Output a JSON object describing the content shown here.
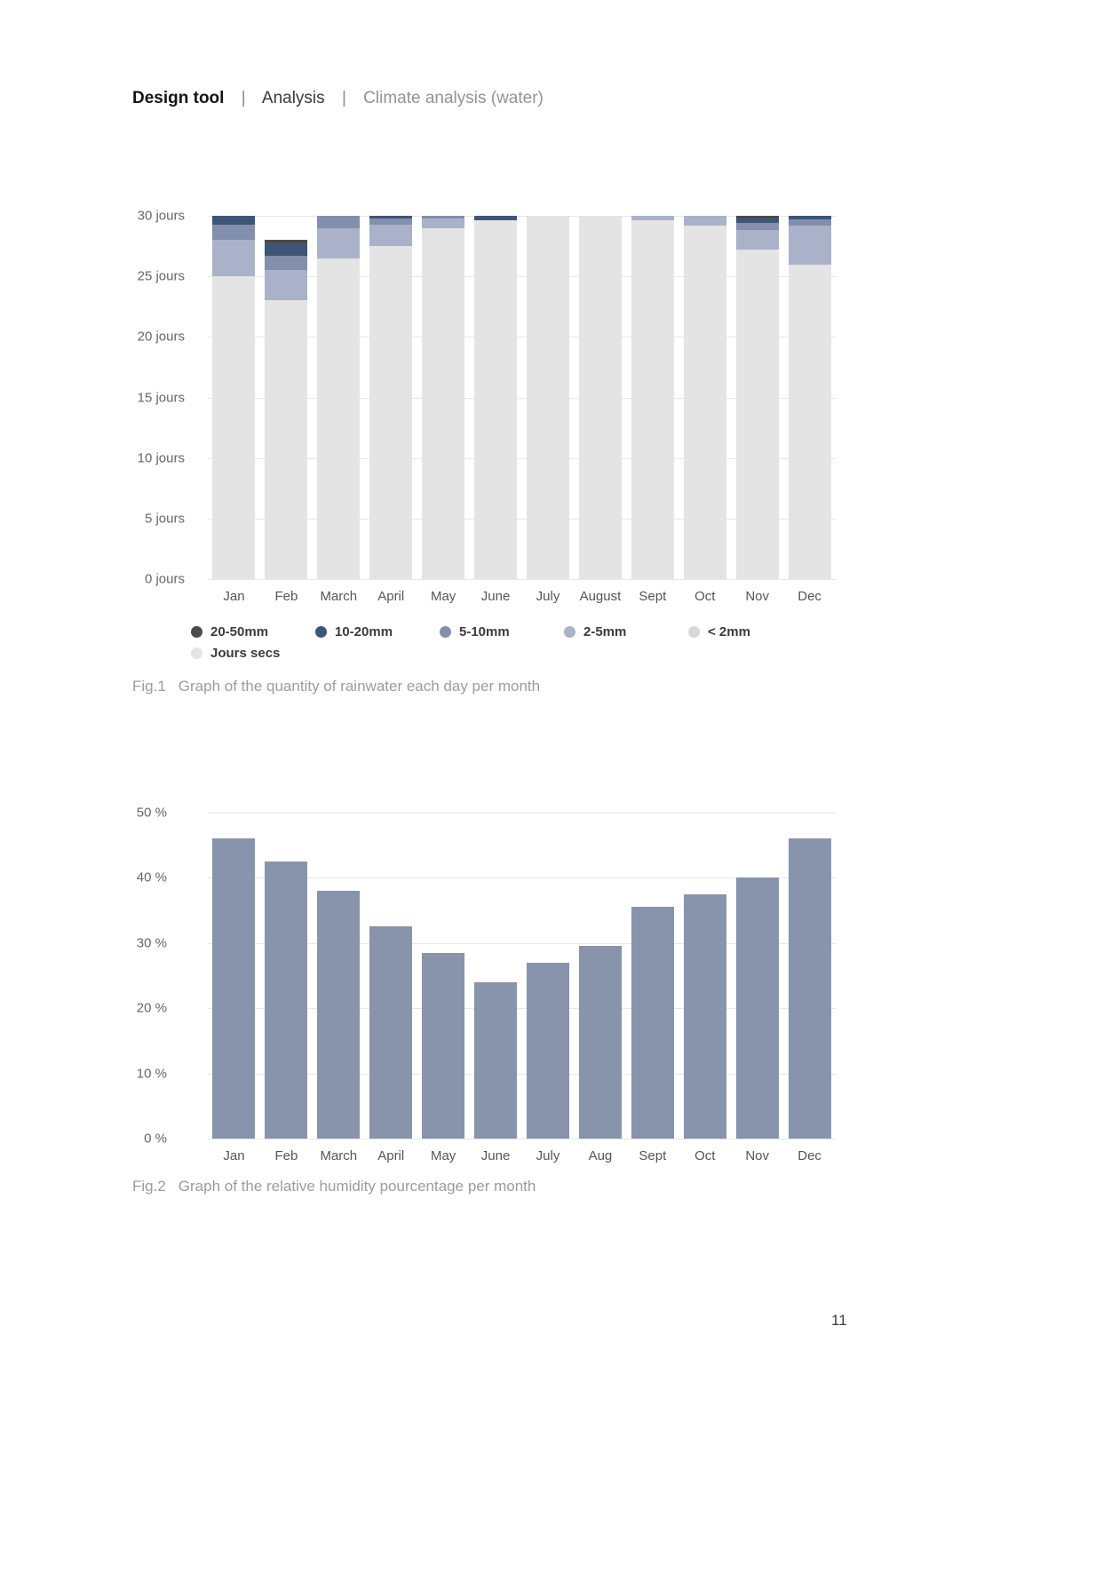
{
  "header": {
    "title": "Design tool",
    "separator": "|",
    "section": "Analysis",
    "subsection": "Climate analysis (water)"
  },
  "fig1": {
    "label": "Fig.1",
    "text": "Graph of the quantity of rainwater each day per month"
  },
  "fig2": {
    "label": "Fig.2",
    "text": "Graph of the relative humidity pourcentage per month"
  },
  "page_number": "11",
  "chart_data": [
    {
      "type": "bar",
      "stacked": true,
      "title": "Quantity of rainwater each day per month",
      "ylabel": "jours",
      "ylim": [
        0,
        30
      ],
      "yticks": [
        "30 jours",
        "25 jours",
        "20 jours",
        "15 jours",
        "10 jours",
        "5 jours",
        "0 jours"
      ],
      "grid": true,
      "legend_position": "bottom",
      "categories": [
        "Jan",
        "Feb",
        "March",
        "April",
        "May",
        "June",
        "July",
        "August",
        "Sept",
        "Oct",
        "Nov",
        "Dec"
      ],
      "series": [
        {
          "name": "Jours secs",
          "color": "#e4e4e5",
          "values": [
            25,
            23,
            26.5,
            27.5,
            29,
            29.6,
            30,
            30,
            29.6,
            29.2,
            27.2,
            26
          ]
        },
        {
          "name": "< 2mm",
          "color": "#d7d7d9",
          "values": [
            0,
            0,
            0,
            0,
            0,
            0,
            0,
            0,
            0,
            0,
            0,
            0
          ]
        },
        {
          "name": "2-5mm",
          "color": "#a9b2c8",
          "values": [
            3,
            2.5,
            2.5,
            1.8,
            0.8,
            0,
            0,
            0,
            0.4,
            0.8,
            1.6,
            3.2
          ]
        },
        {
          "name": "5-10mm",
          "color": "#8290ad",
          "values": [
            1.3,
            1.2,
            1,
            0.5,
            0.2,
            0,
            0,
            0,
            0,
            0,
            0.6,
            0.5
          ]
        },
        {
          "name": "10-20mm",
          "color": "#3d5677",
          "values": [
            0.7,
            1,
            0,
            0.2,
            0,
            0.4,
            0,
            0,
            0,
            0,
            0.4,
            0.3
          ]
        },
        {
          "name": "20-50mm",
          "color": "#4b4b4d",
          "values": [
            0,
            0.3,
            0,
            0,
            0,
            0,
            0,
            0,
            0,
            0,
            0.2,
            0
          ]
        }
      ],
      "legend": [
        {
          "label": "20-50mm",
          "color": "#4b4b4d"
        },
        {
          "label": "10-20mm",
          "color": "#3d5677"
        },
        {
          "label": "5-10mm",
          "color": "#8290ad"
        },
        {
          "label": "2-5mm",
          "color": "#a9b2c8"
        },
        {
          "label": "< 2mm",
          "color": "#d7d7d9"
        },
        {
          "label": "Jours secs",
          "color": "#e4e4e5"
        }
      ]
    },
    {
      "type": "bar",
      "stacked": false,
      "title": "Relative humidity pourcentage per month",
      "ylabel": "%",
      "ylim": [
        0,
        50
      ],
      "yticks": [
        "50 %",
        "40 %",
        "30 %",
        "20 %",
        "10 %",
        "0 %"
      ],
      "grid": true,
      "categories": [
        "Jan",
        "Feb",
        "March",
        "April",
        "May",
        "June",
        "July",
        "Aug",
        "Sept",
        "Oct",
        "Nov",
        "Dec"
      ],
      "series": [
        {
          "name": "Relative humidity",
          "color": "#8794ab",
          "values": [
            46,
            42.5,
            38,
            32.5,
            28.5,
            24,
            27,
            29.5,
            35.5,
            37.5,
            40,
            46
          ]
        }
      ]
    }
  ]
}
